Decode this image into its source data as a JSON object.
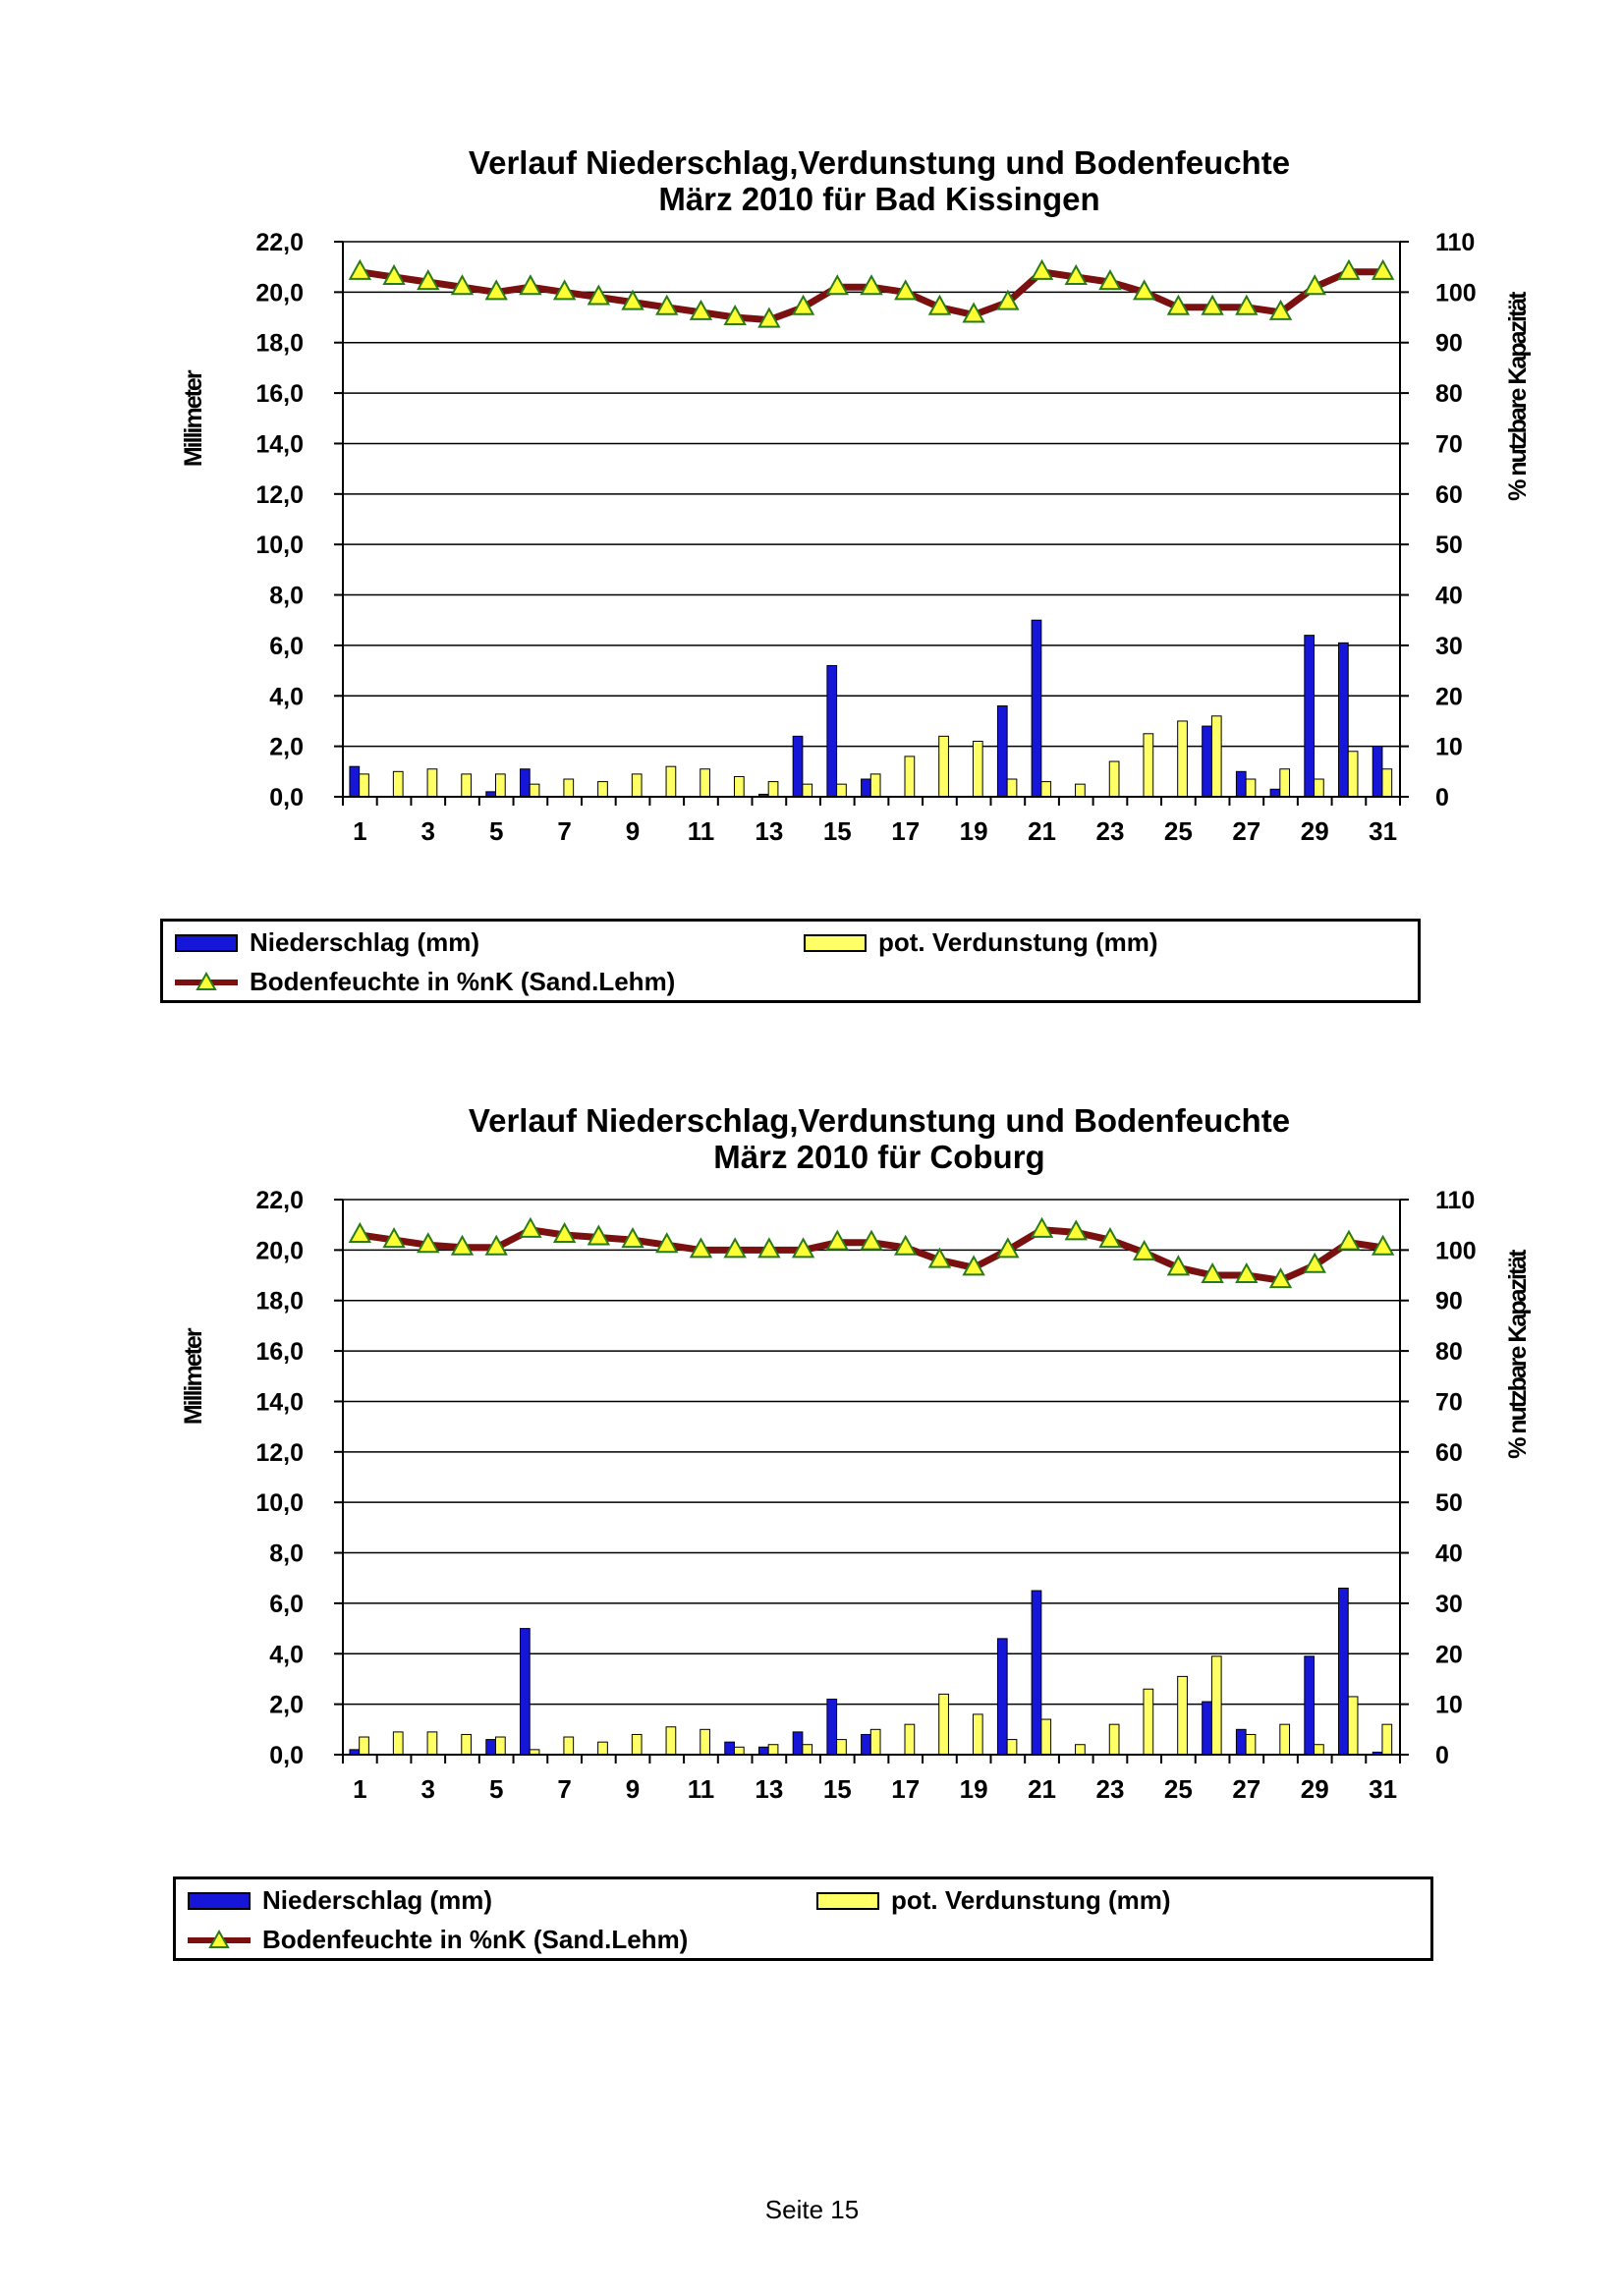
{
  "colors": {
    "niederschlag": "#1616d8",
    "verdunstung": "#ffff66",
    "bodenfeuchte_line": "#7a1010",
    "bodenfeuchte_marker": "#ffff33",
    "bodenfeuchte_marker_edge": "#2a7a1a"
  },
  "chart_data": [
    {
      "type": "bar",
      "title": "Verlauf Niederschlag,Verdunstung und Bodenfeuchte",
      "subtitle": "März  2010 für Bad Kissingen",
      "ylabel": "Millimeter",
      "y2label": "% nutzbare Kapazität",
      "ylim": [
        0,
        22
      ],
      "y2lim": [
        0,
        110
      ],
      "yticks": [
        "22,0",
        "20,0",
        "18,0",
        "16,0",
        "14,0",
        "12,0",
        "10,0",
        "8,0",
        "6,0",
        "4,0",
        "2,0",
        "0,0"
      ],
      "y2ticks": [
        "110",
        "100",
        "90",
        "80",
        "70",
        "60",
        "50",
        "40",
        "30",
        "20",
        "10",
        "0"
      ],
      "xticks": [
        "1",
        "3",
        "5",
        "7",
        "9",
        "11",
        "13",
        "15",
        "17",
        "19",
        "21",
        "23",
        "25",
        "27",
        "29",
        "31"
      ],
      "x": [
        1,
        2,
        3,
        4,
        5,
        6,
        7,
        8,
        9,
        10,
        11,
        12,
        13,
        14,
        15,
        16,
        17,
        18,
        19,
        20,
        21,
        22,
        23,
        24,
        25,
        26,
        27,
        28,
        29,
        30,
        31
      ],
      "grid": true,
      "series": [
        {
          "name": "Niederschlag (mm)",
          "type": "bar",
          "axis": "left",
          "values": [
            1.2,
            0,
            0,
            0,
            0.2,
            1.1,
            0,
            0,
            0,
            0,
            0,
            0,
            0.1,
            2.4,
            5.2,
            0.7,
            0,
            0,
            0,
            3.6,
            7.0,
            0,
            0,
            0,
            0,
            2.8,
            1.0,
            0.3,
            6.4,
            6.1,
            2.0
          ]
        },
        {
          "name": "pot. Verdunstung (mm)",
          "type": "bar",
          "axis": "left",
          "values": [
            0.9,
            1.0,
            1.1,
            0.9,
            0.9,
            0.5,
            0.7,
            0.6,
            0.9,
            1.2,
            1.1,
            0.8,
            0.6,
            0.5,
            0.5,
            0.9,
            1.6,
            2.4,
            2.2,
            0.7,
            0.6,
            0.5,
            1.4,
            2.5,
            3.0,
            3.2,
            0.7,
            1.1,
            0.7,
            1.8,
            1.1
          ]
        },
        {
          "name": "Bodenfeuchte in %nK (Sand.Lehm)",
          "type": "line",
          "axis": "right",
          "values": [
            104,
            103,
            102,
            101,
            100,
            101,
            100,
            99,
            98,
            97,
            96,
            95,
            94.5,
            97,
            101,
            101,
            100,
            97,
            95.5,
            98,
            104,
            103,
            102,
            100,
            97,
            97,
            97,
            96,
            101,
            104,
            104
          ]
        }
      ],
      "legend": {
        "position": "bottom",
        "rows": [
          [
            "Niederschlag (mm)",
            "pot. Verdunstung (mm)"
          ],
          [
            "Bodenfeuchte in %nK (Sand.Lehm)"
          ]
        ]
      }
    },
    {
      "type": "bar",
      "title": "Verlauf Niederschlag,Verdunstung und Bodenfeuchte",
      "subtitle": "März 2010 für Coburg",
      "ylabel": "Millimeter",
      "y2label": "% nutzbare Kapazität",
      "ylim": [
        0,
        22
      ],
      "y2lim": [
        0,
        110
      ],
      "yticks": [
        "22,0",
        "20,0",
        "18,0",
        "16,0",
        "14,0",
        "12,0",
        "10,0",
        "8,0",
        "6,0",
        "4,0",
        "2,0",
        "0,0"
      ],
      "y2ticks": [
        "110",
        "100",
        "90",
        "80",
        "70",
        "60",
        "50",
        "40",
        "30",
        "20",
        "10",
        "0"
      ],
      "xticks": [
        "1",
        "3",
        "5",
        "7",
        "9",
        "11",
        "13",
        "15",
        "17",
        "19",
        "21",
        "23",
        "25",
        "27",
        "29",
        "31"
      ],
      "x": [
        1,
        2,
        3,
        4,
        5,
        6,
        7,
        8,
        9,
        10,
        11,
        12,
        13,
        14,
        15,
        16,
        17,
        18,
        19,
        20,
        21,
        22,
        23,
        24,
        25,
        26,
        27,
        28,
        29,
        30,
        31
      ],
      "grid": true,
      "series": [
        {
          "name": "Niederschlag (mm)",
          "type": "bar",
          "axis": "left",
          "values": [
            0.2,
            0,
            0,
            0,
            0.6,
            5.0,
            0,
            0,
            0,
            0,
            0,
            0.5,
            0.3,
            0.9,
            2.2,
            0.8,
            0,
            0,
            0,
            4.6,
            6.5,
            0,
            0,
            0,
            0,
            2.1,
            1.0,
            0,
            3.9,
            6.6,
            0.1
          ]
        },
        {
          "name": "pot. Verdunstung (mm)",
          "type": "bar",
          "axis": "left",
          "values": [
            0.7,
            0.9,
            0.9,
            0.8,
            0.7,
            0.2,
            0.7,
            0.5,
            0.8,
            1.1,
            1.0,
            0.3,
            0.4,
            0.4,
            0.6,
            1.0,
            1.2,
            2.4,
            1.6,
            0.6,
            1.4,
            0.4,
            1.2,
            2.6,
            3.1,
            3.9,
            0.8,
            1.2,
            0.4,
            2.3,
            1.2
          ]
        },
        {
          "name": "Bodenfeuchte in %nK (Sand.Lehm)",
          "type": "line",
          "axis": "right",
          "values": [
            103,
            102,
            101,
            100.5,
            100.5,
            104,
            103,
            102.5,
            102,
            101,
            100,
            100,
            100,
            100,
            101.5,
            101.5,
            100.5,
            98,
            96.5,
            100,
            104,
            103.5,
            102,
            99.5,
            96.5,
            95,
            95,
            94,
            97,
            101.5,
            100.5
          ]
        }
      ],
      "legend": {
        "position": "bottom",
        "rows": [
          [
            "Niederschlag (mm)",
            "pot. Verdunstung (mm)"
          ],
          [
            "Bodenfeuchte in %nK (Sand.Lehm)"
          ]
        ]
      }
    }
  ],
  "footer": {
    "page_label": "Seite 15"
  }
}
